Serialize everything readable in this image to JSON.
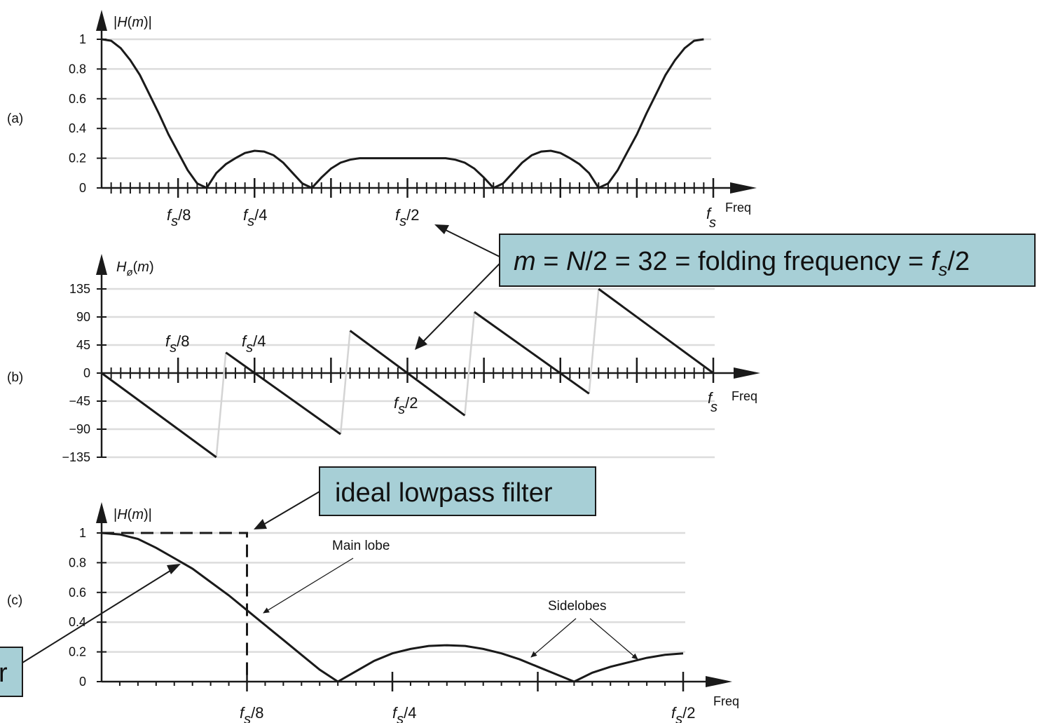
{
  "colors": {
    "curve": "#1a1a1a",
    "grid": "#dcdcdc",
    "phase_jump": "#d4d4d4",
    "callout_fill": "#a7cfd6"
  },
  "chart_data": [
    {
      "panel": "(a)",
      "type": "line",
      "ylabel": "|H(m)|",
      "xlabel": "Freq",
      "yticks": [
        "0",
        "0.2",
        "0.4",
        "0.6",
        "0.8",
        "1"
      ],
      "ylim": [
        0,
        1
      ],
      "xticks": [
        "fs/8",
        "fs/4",
        "fs/2",
        "fs"
      ],
      "xlim": [
        0,
        64
      ],
      "grid": true,
      "x": [
        0,
        1,
        2,
        3,
        4,
        5,
        6,
        7,
        8,
        9,
        10,
        11,
        12,
        13,
        14,
        15,
        16,
        17,
        18,
        19,
        20,
        21,
        22,
        23,
        24,
        25,
        26,
        27,
        28,
        29,
        30,
        31,
        32,
        33,
        34,
        35,
        36,
        37,
        38,
        39,
        40,
        41,
        42,
        43,
        44,
        45,
        46,
        47,
        48,
        49,
        50,
        51,
        52,
        53,
        54,
        55,
        56,
        57,
        58,
        59,
        60,
        61,
        62,
        63
      ],
      "y": [
        1.0,
        0.99,
        0.94,
        0.86,
        0.76,
        0.63,
        0.5,
        0.36,
        0.24,
        0.12,
        0.03,
        0.0,
        0.1,
        0.16,
        0.2,
        0.235,
        0.25,
        0.245,
        0.22,
        0.17,
        0.1,
        0.03,
        0.0,
        0.07,
        0.13,
        0.17,
        0.19,
        0.2,
        0.2,
        0.2,
        0.2,
        0.2,
        0.2,
        0.2,
        0.2,
        0.2,
        0.2,
        0.19,
        0.17,
        0.13,
        0.07,
        0.0,
        0.03,
        0.1,
        0.17,
        0.22,
        0.245,
        0.25,
        0.235,
        0.2,
        0.16,
        0.1,
        0.0,
        0.03,
        0.12,
        0.24,
        0.36,
        0.5,
        0.63,
        0.76,
        0.86,
        0.94,
        0.99,
        1.0
      ]
    },
    {
      "panel": "(b)",
      "type": "line",
      "ylabel": "Hø(m)",
      "xlabel": "Freq",
      "yticks": [
        "135",
        "90",
        "45",
        "0",
        "−45",
        "−90",
        "−135"
      ],
      "ylim": [
        -135,
        135
      ],
      "xticks": [
        "fs/8",
        "fs/4",
        "fs/2",
        "fs"
      ],
      "xlim": [
        0,
        64
      ],
      "grid": true,
      "segments": [
        {
          "x": [
            0,
            12
          ],
          "y": [
            0,
            -135
          ]
        },
        {
          "x": [
            13,
            25
          ],
          "y": [
            33,
            -98
          ]
        },
        {
          "x": [
            26,
            38
          ],
          "y": [
            68,
            -68
          ]
        },
        {
          "x": [
            39,
            51
          ],
          "y": [
            98,
            -33
          ]
        },
        {
          "x": [
            52,
            64
          ],
          "y": [
            135,
            0
          ]
        }
      ]
    },
    {
      "panel": "(c)",
      "type": "line",
      "ylabel": "|H(m)|",
      "xlabel": "Freq",
      "yticks": [
        "0",
        "0.2",
        "0.4",
        "0.6",
        "0.8",
        "1"
      ],
      "ylim": [
        0,
        1
      ],
      "xticks": [
        "fs/8",
        "fs/4",
        "fs/2"
      ],
      "xlim": [
        0,
        32
      ],
      "grid": true,
      "x": [
        0,
        1,
        2,
        3,
        4,
        5,
        6,
        7,
        8,
        9,
        10,
        11,
        12,
        13,
        14,
        15,
        16,
        17,
        18,
        19,
        20,
        21,
        22,
        23,
        24,
        25,
        26,
        27,
        28,
        29,
        30,
        31,
        32
      ],
      "y": [
        1.0,
        0.99,
        0.96,
        0.9,
        0.83,
        0.76,
        0.67,
        0.58,
        0.48,
        0.38,
        0.28,
        0.18,
        0.08,
        0.0,
        0.07,
        0.14,
        0.19,
        0.22,
        0.24,
        0.245,
        0.24,
        0.22,
        0.19,
        0.15,
        0.1,
        0.05,
        0.0,
        0.06,
        0.1,
        0.13,
        0.16,
        0.18,
        0.19
      ],
      "ideal": {
        "cutoff": 8,
        "level": 1
      }
    }
  ],
  "labels": {
    "freq": "Freq",
    "fs8": "/8",
    "fs4": "/4",
    "fs2": "/2",
    "fs_f": "f",
    "fs_s": "s",
    "panel_a": "(a)",
    "panel_b": "(b)",
    "panel_c": "(c)",
    "ylab_a_pre": "|",
    "ylab_a_H": "H",
    "ylab_a_open": "(",
    "ylab_a_m": "m",
    "ylab_a_close": ")|",
    "ylab_b_H": "H",
    "ylab_b_sub": "ø",
    "ylab_b_open": "(",
    "ylab_b_m": "m",
    "ylab_b_close": ")",
    "main_lobe": "Main lobe",
    "sidelobes": "Sidelobes"
  },
  "callouts": {
    "folding_m": "m",
    "folding_eq1": " = ",
    "folding_N": "N",
    "folding_rest": "/2 = 32 = folding frequency = ",
    "folding_f": "f",
    "folding_s": "s",
    "folding_end": "/2",
    "ideal": "ideal lowpass filter",
    "partial": "r"
  }
}
